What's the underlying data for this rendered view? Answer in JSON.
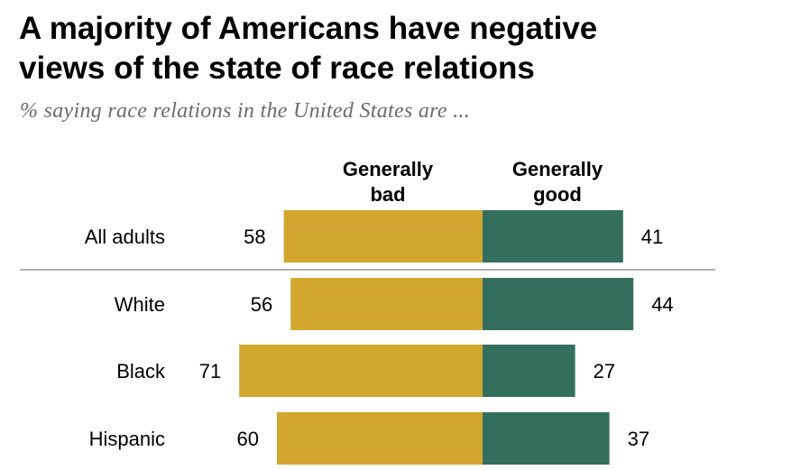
{
  "title_line1": "A majority of Americans have negative",
  "title_line2": "views of the state of race relations",
  "subtitle": "% saying race relations in the United States are ...",
  "chart_data": {
    "type": "bar",
    "orientation": "horizontal-diverging",
    "categories": [
      "All adults",
      "White",
      "Black",
      "Hispanic"
    ],
    "series": [
      {
        "name": "Generally bad",
        "name_line1": "Generally",
        "name_line2": "bad",
        "values": [
          58,
          56,
          71,
          60
        ],
        "color": "#d1a730"
      },
      {
        "name": "Generally good",
        "name_line1": "Generally",
        "name_line2": "good",
        "values": [
          41,
          44,
          27,
          37
        ],
        "color": "#346f5e"
      }
    ],
    "divider_after_category": "All adults",
    "grid": false,
    "legend": "column headers above bars"
  }
}
